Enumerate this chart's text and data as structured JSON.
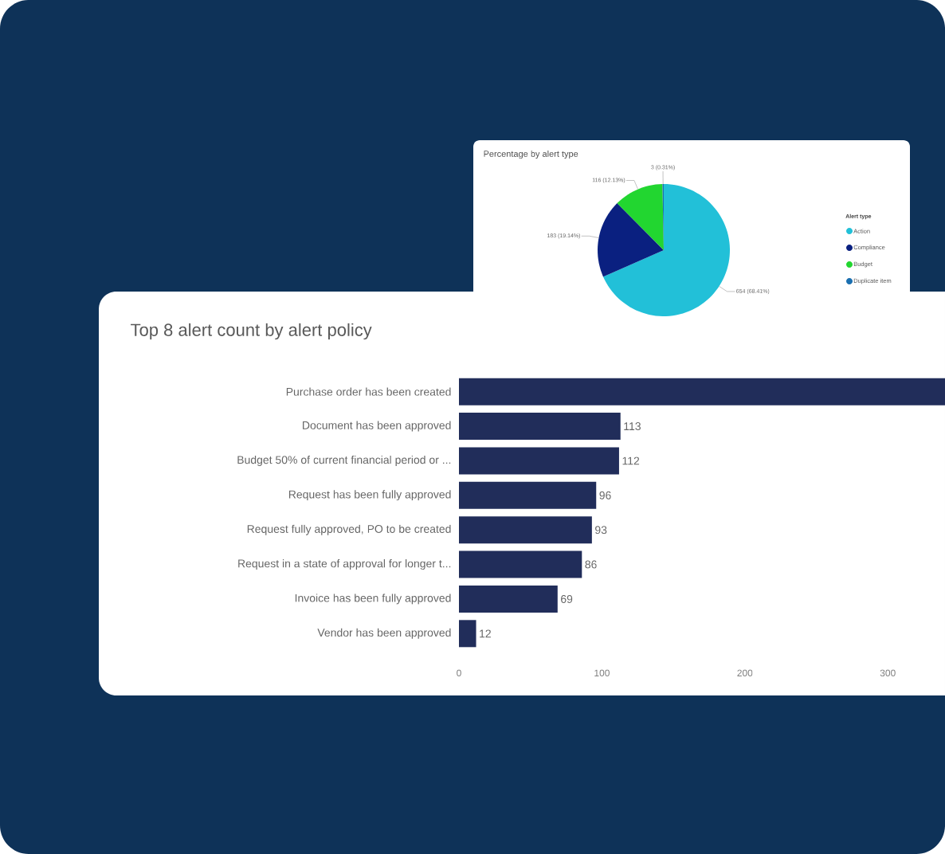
{
  "chart_data": [
    {
      "type": "pie",
      "title": "Percentage by alert type",
      "legend_title": "Alert type",
      "legend": "right",
      "categories": [
        "Action",
        "Compliance",
        "Budget",
        "Duplicate item"
      ],
      "values": [
        654,
        183,
        116,
        3
      ],
      "colors": [
        "#22c0d8",
        "#0a2080",
        "#22d630",
        "#1a6fb0"
      ],
      "value_labels": [
        "654 (68.41%)",
        "183 (19.14%)",
        "116 (12.13%)",
        "3 (0.31%)"
      ]
    },
    {
      "type": "bar",
      "orientation": "horizontal",
      "title": "Top 8 alert count by alert policy",
      "categories": [
        "Purchase order has been created",
        "Document has been approved",
        "Budget 50% of current financial period or ...",
        "Request has been fully approved",
        "Request fully approved, PO to be created",
        "Request in a state of approval for longer t...",
        "Invoice has been fully approved",
        "Vendor has been approved"
      ],
      "values": [
        340,
        113,
        112,
        96,
        93,
        86,
        69,
        12
      ],
      "color": "#212d5a",
      "value_labels": [
        null,
        "113",
        "112",
        "96",
        "93",
        "86",
        "69",
        "12"
      ],
      "xlim": [
        0,
        340
      ],
      "xticks": [
        0,
        100,
        200,
        300
      ]
    }
  ]
}
